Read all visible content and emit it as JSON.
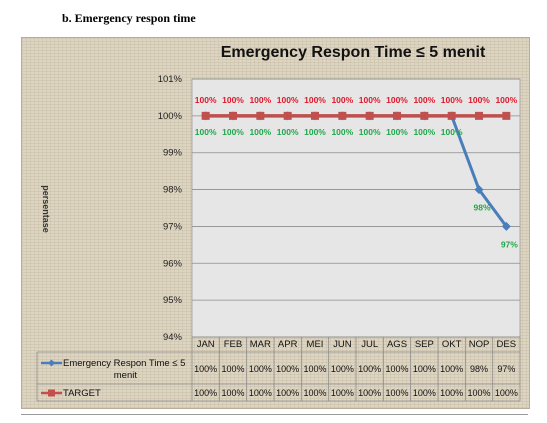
{
  "heading": "b.   Emergency respon time",
  "chart_data": {
    "type": "line",
    "title": "Emergency Respon Time ≤ 5 menit",
    "ylabel": "persentase",
    "xlabel": "",
    "ylim": [
      94,
      101
    ],
    "yticks": [
      "94%",
      "95%",
      "96%",
      "97%",
      "98%",
      "99%",
      "100%",
      "101%"
    ],
    "categories": [
      "JAN",
      "FEB",
      "MAR",
      "APR",
      "MEI",
      "JUN",
      "JUL",
      "AGS",
      "SEP",
      "OKT",
      "NOP",
      "DES"
    ],
    "grid": true,
    "legend": "data-table-left",
    "series": [
      {
        "name": "Emergency Respon Time ≤ 5 menit",
        "color": "#4a7ebb",
        "marker": "diamond",
        "values": [
          100,
          100,
          100,
          100,
          100,
          100,
          100,
          100,
          100,
          100,
          98,
          97
        ],
        "labels": [
          "100%",
          "100%",
          "100%",
          "100%",
          "100%",
          "100%",
          "100%",
          "100%",
          "100%",
          "100%",
          "98%",
          "97%"
        ],
        "label_color": "#1fa84a"
      },
      {
        "name": "TARGET",
        "color": "#c0504d",
        "marker": "square",
        "values": [
          100,
          100,
          100,
          100,
          100,
          100,
          100,
          100,
          100,
          100,
          100,
          100
        ],
        "labels": [
          "100%",
          "100%",
          "100%",
          "100%",
          "100%",
          "100%",
          "100%",
          "100%",
          "100%",
          "100%",
          "100%",
          "100%"
        ],
        "label_color": "#e0182a"
      }
    ]
  }
}
